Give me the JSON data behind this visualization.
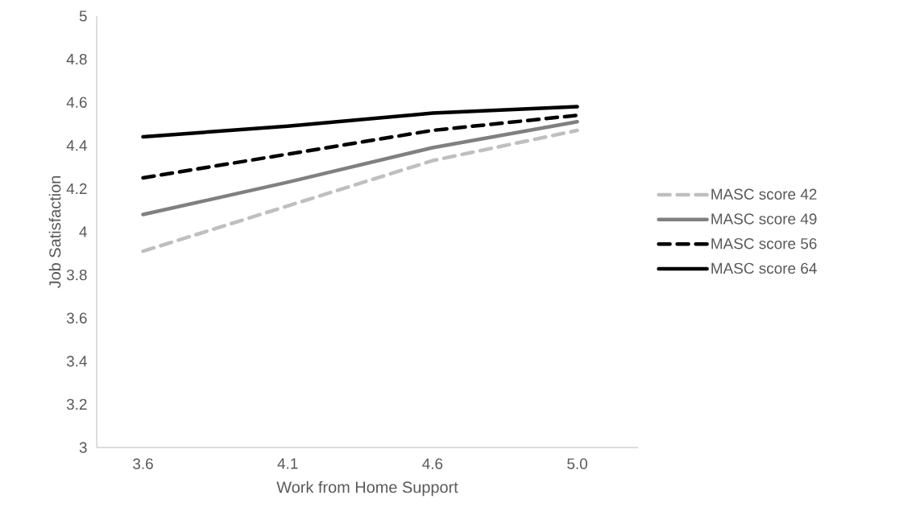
{
  "chart_data": {
    "type": "line",
    "xlabel": "Work from Home Support",
    "ylabel": "Job Satisfaction",
    "categories": [
      "3.6",
      "4.1",
      "4.6",
      "5.0"
    ],
    "ylim": [
      3,
      5
    ],
    "yticks": [
      3,
      3.2,
      3.4,
      3.6,
      3.8,
      4,
      4.2,
      4.4,
      4.6,
      4.8,
      5
    ],
    "legend": "right",
    "series": [
      {
        "name": "MASC score 42",
        "color": "#bfbfbf",
        "line_style": "dashed",
        "values": [
          3.91,
          4.12,
          4.33,
          4.47
        ]
      },
      {
        "name": "MASC score 49",
        "color": "#808080",
        "line_style": "solid",
        "values": [
          4.08,
          4.23,
          4.39,
          4.51
        ]
      },
      {
        "name": "MASC score 56",
        "color": "#000000",
        "line_style": "dashed",
        "values": [
          4.25,
          4.36,
          4.47,
          4.54
        ]
      },
      {
        "name": "MASC score 64",
        "color": "#000000",
        "line_style": "solid",
        "values": [
          4.44,
          4.49,
          4.55,
          4.58
        ]
      }
    ]
  }
}
